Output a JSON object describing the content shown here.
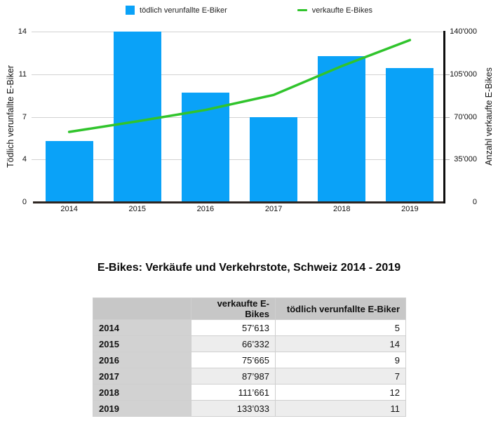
{
  "chart_data": {
    "type": "bar",
    "note": "combined bar + line chart, dual y-axes",
    "categories": [
      "2014",
      "2015",
      "2016",
      "2017",
      "2018",
      "2019"
    ],
    "series": [
      {
        "name": "tödlich verunfallte E-Biker",
        "type": "bar",
        "axis": "left",
        "color": "#0aa2f8",
        "values": [
          5,
          14,
          9,
          7,
          12,
          11
        ]
      },
      {
        "name": "verkaufte E-Bikes",
        "type": "line",
        "axis": "right",
        "color": "#30c42c",
        "values": [
          57613,
          66332,
          75665,
          87987,
          111661,
          133033
        ]
      }
    ],
    "left_axis": {
      "label": "Tödlich verunfallte E-Biker",
      "range": [
        0,
        14
      ],
      "tick_labels": [
        "14",
        "11",
        "7",
        "4",
        "0"
      ]
    },
    "right_axis": {
      "label": "Anzahl verkaufte E-Bikes",
      "range": [
        0,
        140000
      ],
      "tick_labels": [
        "140'000",
        "105'000",
        "70'000",
        "35'000",
        "0"
      ]
    },
    "grid": true,
    "legend_position": "top"
  },
  "table": {
    "title": "E-Bikes: Verkäufe und Verkehrstote, Schweiz 2014 - 2019",
    "columns": [
      "",
      "verkaufte E-Bikes",
      "tödlich verunfallte E-Biker"
    ],
    "rows": [
      {
        "year": "2014",
        "sales": "57’613",
        "deaths": "5"
      },
      {
        "year": "2015",
        "sales": "66’332",
        "deaths": "14"
      },
      {
        "year": "2016",
        "sales": "75’665",
        "deaths": "9"
      },
      {
        "year": "2017",
        "sales": "87’987",
        "deaths": "7"
      },
      {
        "year": "2018",
        "sales": "111’661",
        "deaths": "12"
      },
      {
        "year": "2019",
        "sales": "133’033",
        "deaths": "11"
      }
    ]
  }
}
